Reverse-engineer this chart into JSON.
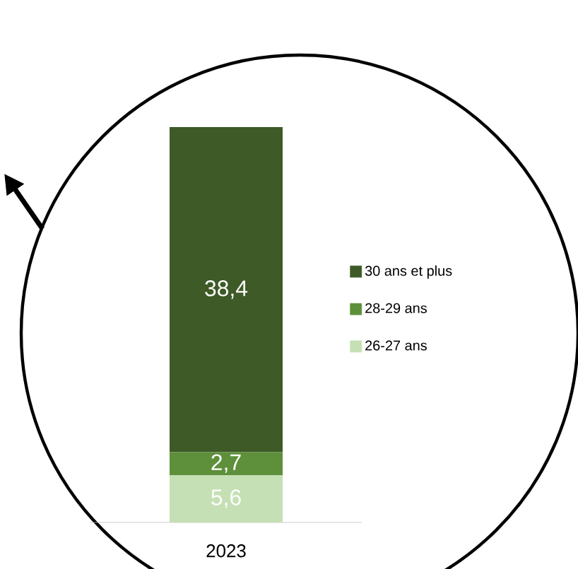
{
  "chart_data": {
    "type": "bar",
    "stacked": true,
    "categories": [
      "2023"
    ],
    "legend": "right",
    "series": [
      {
        "name": "26-27 ans",
        "color": "#c5e0b4",
        "values": [
          5.6
        ],
        "value_labels": [
          "5,6"
        ]
      },
      {
        "name": "28-29 ans",
        "color": "#5e8f3a",
        "values": [
          2.7
        ],
        "value_labels": [
          "2,7"
        ]
      },
      {
        "name": "30 ans et plus",
        "color": "#3d5a27",
        "values": [
          38.4
        ],
        "value_labels": [
          "38,4"
        ]
      }
    ]
  }
}
